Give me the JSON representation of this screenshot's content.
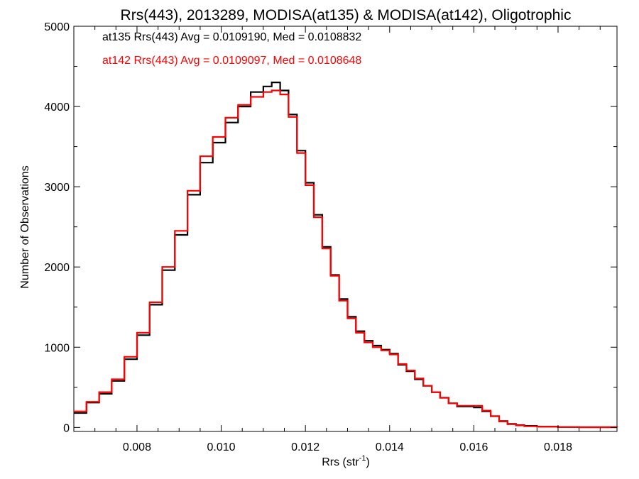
{
  "chart_data": {
    "type": "line",
    "title": "Rrs(443), 2013289, MODISA(at135) & MODISA(at142), Oligotrophic",
    "xlabel_main": "Rrs (str",
    "xlabel_sup": "-1",
    "xlabel_end": ")",
    "ylabel": "Number of Observations",
    "xlim": [
      0.0065,
      0.0194
    ],
    "ylim": [
      -50,
      5000
    ],
    "x_ticks": [
      0.008,
      0.01,
      0.012,
      0.014,
      0.016,
      0.018
    ],
    "x_tick_labels": [
      "0.008",
      "0.010",
      "0.012",
      "0.014",
      "0.016",
      "0.018"
    ],
    "y_ticks": [
      0,
      1000,
      2000,
      3000,
      4000,
      5000
    ],
    "y_tick_labels": [
      "0",
      "1000",
      "2000",
      "3000",
      "4000",
      "5000"
    ],
    "legend": [
      {
        "text": "at135 Rrs(443) Avg = 0.0109190, Med = 0.0108832",
        "color": "#000000"
      },
      {
        "text": "at142 Rrs(443) Avg = 0.0109097, Med = 0.0108648",
        "color": "#ff0000"
      }
    ],
    "series": [
      {
        "color": "#000000",
        "x": [
          0.0065,
          0.0068,
          0.0071,
          0.0074,
          0.0077,
          0.008,
          0.0083,
          0.0086,
          0.0089,
          0.0092,
          0.0095,
          0.0098,
          0.0101,
          0.0104,
          0.0107,
          0.011,
          0.0112,
          0.0114,
          0.0116,
          0.0118,
          0.012,
          0.0122,
          0.0124,
          0.0126,
          0.0128,
          0.013,
          0.0132,
          0.0134,
          0.0136,
          0.0138,
          0.014,
          0.0142,
          0.0144,
          0.0146,
          0.0148,
          0.015,
          0.0152,
          0.0154,
          0.0156,
          0.0158,
          0.016,
          0.0162,
          0.0164,
          0.0166,
          0.0168,
          0.017,
          0.0172,
          0.0175,
          0.018,
          0.0185,
          0.0194
        ],
        "y": [
          180,
          310,
          420,
          580,
          850,
          1150,
          1530,
          1960,
          2400,
          2900,
          3300,
          3550,
          3800,
          4000,
          4180,
          4250,
          4300,
          4200,
          3900,
          3450,
          3050,
          2650,
          2250,
          1900,
          1600,
          1380,
          1200,
          1080,
          1020,
          970,
          920,
          780,
          700,
          600,
          520,
          440,
          370,
          300,
          260,
          260,
          250,
          200,
          140,
          80,
          45,
          30,
          20,
          10,
          5,
          3,
          0
        ]
      },
      {
        "color": "#ff0000",
        "x": [
          0.0065,
          0.0068,
          0.0071,
          0.0074,
          0.0077,
          0.008,
          0.0083,
          0.0086,
          0.0089,
          0.0092,
          0.0095,
          0.0098,
          0.0101,
          0.0104,
          0.0107,
          0.011,
          0.0112,
          0.0114,
          0.0116,
          0.0118,
          0.012,
          0.0122,
          0.0124,
          0.0126,
          0.0128,
          0.013,
          0.0132,
          0.0134,
          0.0136,
          0.0138,
          0.014,
          0.0142,
          0.0144,
          0.0146,
          0.0148,
          0.015,
          0.0152,
          0.0154,
          0.0156,
          0.0158,
          0.016,
          0.0162,
          0.0164,
          0.0166,
          0.0168,
          0.017,
          0.0172,
          0.0175,
          0.018,
          0.0185,
          0.0194
        ],
        "y": [
          200,
          320,
          440,
          600,
          880,
          1180,
          1560,
          2000,
          2450,
          2950,
          3380,
          3620,
          3860,
          4020,
          4120,
          4180,
          4200,
          4150,
          3870,
          3420,
          3020,
          2620,
          2230,
          1890,
          1580,
          1360,
          1180,
          1060,
          1000,
          960,
          910,
          790,
          710,
          610,
          520,
          440,
          370,
          300,
          270,
          270,
          270,
          210,
          140,
          75,
          40,
          25,
          15,
          8,
          5,
          3,
          0
        ]
      }
    ],
    "grid": false
  }
}
